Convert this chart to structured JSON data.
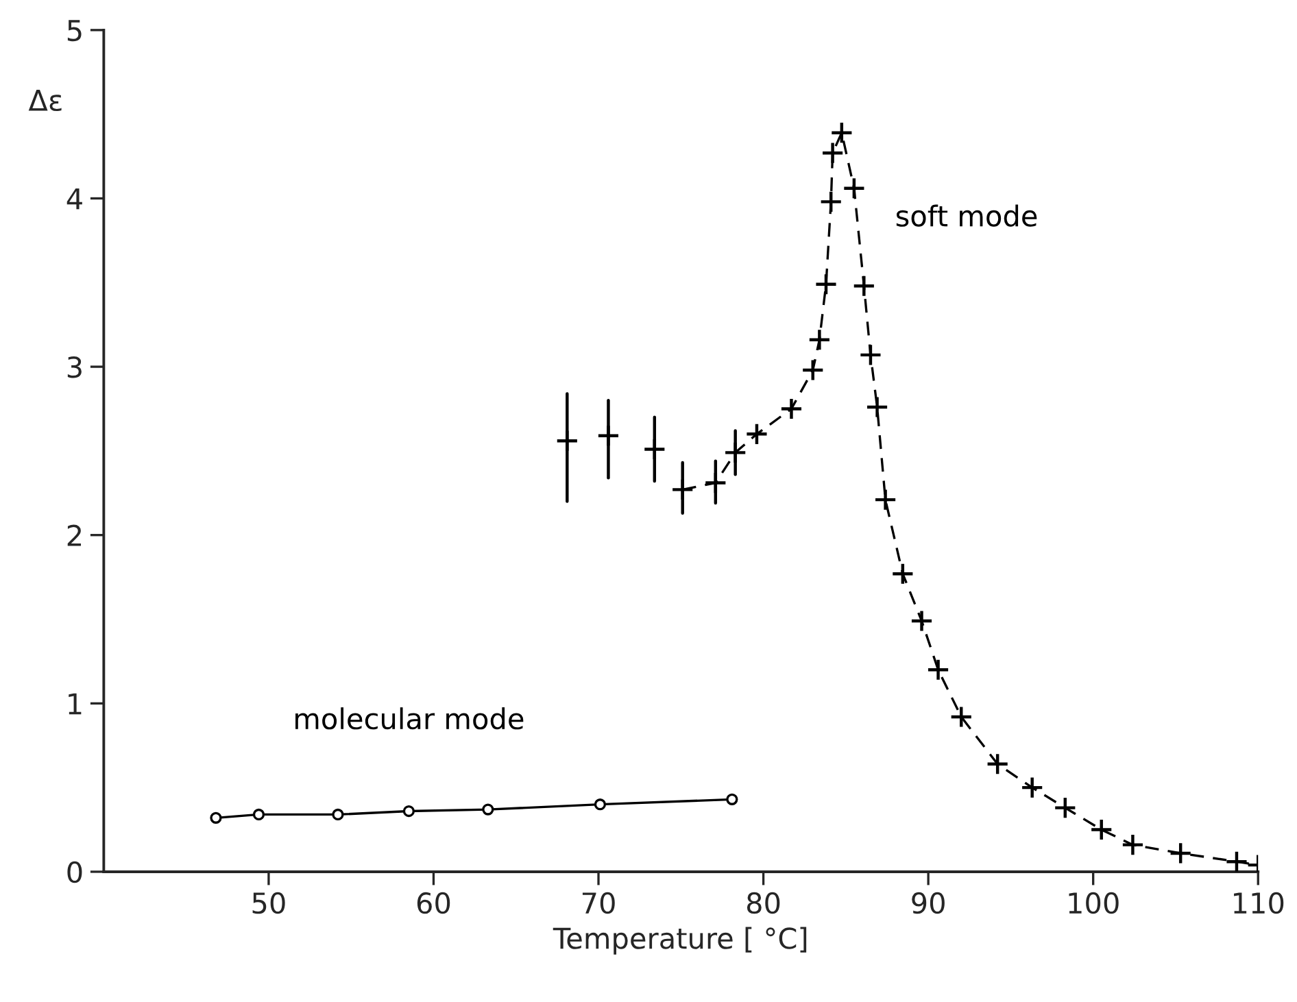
{
  "chart_data": {
    "type": "scatter",
    "xlabel": "Temperature [ °C]",
    "ylabel": "Δε",
    "xlim": [
      40,
      110
    ],
    "xticks": [
      50,
      60,
      70,
      80,
      90,
      100,
      110
    ],
    "ylim": [
      0,
      5
    ],
    "yticks": [
      0,
      1,
      2,
      3,
      4,
      5
    ],
    "grid": false,
    "legend": false,
    "series": [
      {
        "name": "soft mode",
        "marker": "cross",
        "color": "#000000",
        "x": [
          68.1,
          70.6,
          73.4,
          75.1,
          77.1,
          78.3,
          79.6,
          81.7,
          83.0,
          83.4,
          83.8,
          84.1,
          84.2,
          84.75,
          85.5,
          86.1,
          86.5,
          86.9,
          87.4,
          88.45,
          89.6,
          90.6,
          92.0,
          94.2,
          96.3,
          98.3,
          100.5,
          102.4,
          105.3,
          108.7,
          110.0
        ],
        "values": [
          2.56,
          2.59,
          2.51,
          2.27,
          2.31,
          2.49,
          2.6,
          2.75,
          2.98,
          3.16,
          3.49,
          3.98,
          4.27,
          4.39,
          4.06,
          3.48,
          3.07,
          2.76,
          2.21,
          1.77,
          1.49,
          1.2,
          0.92,
          0.64,
          0.5,
          0.38,
          0.25,
          0.16,
          0.11,
          0.06,
          0.04
        ],
        "errors": [
          [
            2.2,
            2.84
          ],
          [
            2.34,
            2.8
          ],
          [
            2.32,
            2.7
          ],
          [
            2.13,
            2.43
          ],
          [
            2.19,
            2.44
          ],
          [
            2.36,
            2.62
          ],
          null,
          null,
          null,
          null,
          null,
          null,
          null,
          null,
          null,
          null,
          null,
          null,
          null,
          null,
          null,
          null,
          null,
          null,
          null,
          null,
          null,
          null,
          null,
          null,
          null
        ]
      },
      {
        "type": "line",
        "line_style": "dashed",
        "marker": "none",
        "color": "#000000",
        "x": [
          75.1,
          77.1,
          78.3,
          79.6,
          81.7,
          83.0,
          83.4,
          83.8,
          84.1,
          84.2,
          84.75,
          85.5,
          86.1,
          86.5,
          86.9,
          87.4,
          88.45,
          89.6,
          90.6,
          92.0,
          94.2,
          96.3,
          98.3,
          100.5,
          102.4,
          105.3,
          108.7,
          110.0
        ],
        "values": [
          2.27,
          2.31,
          2.49,
          2.6,
          2.75,
          2.98,
          3.16,
          3.49,
          3.98,
          4.27,
          4.39,
          4.06,
          3.48,
          3.07,
          2.76,
          2.21,
          1.77,
          1.49,
          1.2,
          0.92,
          0.64,
          0.5,
          0.38,
          0.25,
          0.16,
          0.11,
          0.06,
          0.04
        ]
      },
      {
        "name": "molecular mode",
        "type": "line",
        "line_style": "solid",
        "marker": "circle",
        "color": "#000000",
        "x": [
          46.8,
          49.4,
          54.2,
          58.5,
          63.3,
          70.1,
          78.1
        ],
        "values": [
          0.32,
          0.34,
          0.34,
          0.36,
          0.37,
          0.4,
          0.43
        ]
      }
    ]
  }
}
